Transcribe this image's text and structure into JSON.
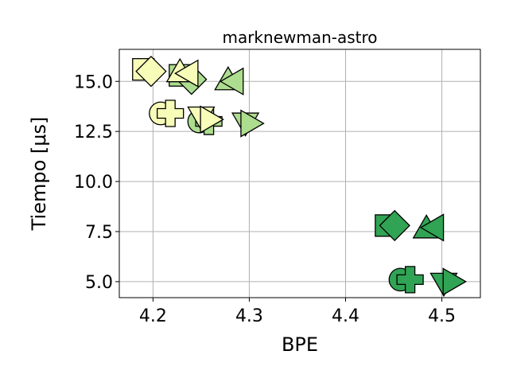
{
  "chart_data": {
    "type": "scatter",
    "title": "marknewman-astro",
    "xlabel": "BPE",
    "ylabel": "Tiempo [μs]",
    "xlim": [
      4.165,
      4.54
    ],
    "ylim": [
      4.2,
      16.6
    ],
    "xticks": [
      4.2,
      4.3,
      4.4,
      4.5
    ],
    "xtick_labels": [
      "4.2",
      "4.3",
      "4.4",
      "4.5"
    ],
    "yticks": [
      5.0,
      7.5,
      10.0,
      12.5,
      15.0
    ],
    "ytick_labels": [
      "5.0",
      "7.5",
      "10.0",
      "12.5",
      "15.0"
    ],
    "grid": true,
    "colors": {
      "light_yellow": "#f7fcb9",
      "light_green": "#addd8e",
      "dark_green": "#31a354"
    },
    "points": [
      {
        "x": 4.19,
        "y": 15.6,
        "marker": "square",
        "color": "light_yellow"
      },
      {
        "x": 4.198,
        "y": 15.5,
        "marker": "diamond",
        "color": "light_yellow"
      },
      {
        "x": 4.228,
        "y": 15.3,
        "marker": "square",
        "color": "light_green"
      },
      {
        "x": 4.24,
        "y": 15.1,
        "marker": "diamond",
        "color": "light_green"
      },
      {
        "x": 4.228,
        "y": 15.4,
        "marker": "triangle-up",
        "color": "light_yellow"
      },
      {
        "x": 4.238,
        "y": 15.4,
        "marker": "triangle-left",
        "color": "light_yellow"
      },
      {
        "x": 4.278,
        "y": 15.0,
        "marker": "triangle-up",
        "color": "light_green"
      },
      {
        "x": 4.285,
        "y": 15.0,
        "marker": "triangle-left",
        "color": "light_green"
      },
      {
        "x": 4.208,
        "y": 13.4,
        "marker": "circle",
        "color": "light_yellow"
      },
      {
        "x": 4.218,
        "y": 13.4,
        "marker": "plus",
        "color": "light_yellow"
      },
      {
        "x": 4.248,
        "y": 13.0,
        "marker": "circle",
        "color": "light_green"
      },
      {
        "x": 4.258,
        "y": 13.0,
        "marker": "plus",
        "color": "light_green"
      },
      {
        "x": 4.25,
        "y": 13.3,
        "marker": "triangle-down",
        "color": "light_yellow"
      },
      {
        "x": 4.258,
        "y": 13.1,
        "marker": "triangle-right",
        "color": "light_yellow"
      },
      {
        "x": 4.296,
        "y": 13.0,
        "marker": "triangle-down",
        "color": "light_green"
      },
      {
        "x": 4.3,
        "y": 12.9,
        "marker": "triangle-right",
        "color": "light_green"
      },
      {
        "x": 4.442,
        "y": 7.8,
        "marker": "square",
        "color": "dark_green"
      },
      {
        "x": 4.451,
        "y": 7.8,
        "marker": "diamond",
        "color": "dark_green"
      },
      {
        "x": 4.484,
        "y": 7.6,
        "marker": "triangle-up",
        "color": "dark_green"
      },
      {
        "x": 4.493,
        "y": 7.7,
        "marker": "triangle-left",
        "color": "dark_green"
      },
      {
        "x": 4.457,
        "y": 5.1,
        "marker": "circle",
        "color": "dark_green"
      },
      {
        "x": 4.467,
        "y": 5.1,
        "marker": "plus",
        "color": "dark_green"
      },
      {
        "x": 4.502,
        "y": 5.0,
        "marker": "triangle-down",
        "color": "dark_green"
      },
      {
        "x": 4.51,
        "y": 5.0,
        "marker": "triangle-right",
        "color": "dark_green"
      }
    ]
  }
}
